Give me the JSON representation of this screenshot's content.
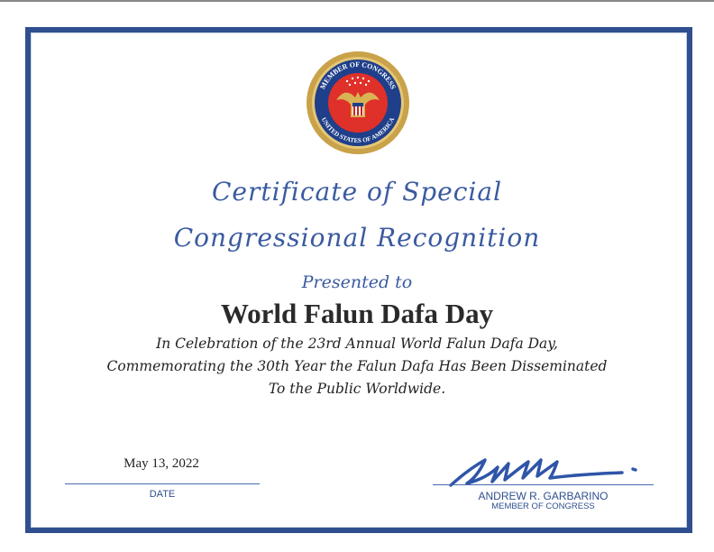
{
  "seal": {
    "top_text": "MEMBER OF CONGRESS",
    "bottom_text": "UNITED STATES OF AMERICA"
  },
  "title": {
    "line1": "Certificate of Special",
    "line2": "Congressional Recognition"
  },
  "presented_to": "Presented to",
  "recipient": "World Falun Dafa Day",
  "body": {
    "line1": "In Celebration of the 23rd Annual World Falun Dafa Day,",
    "line2": "Commemorating the 30th Year the Falun Dafa Has Been Disseminated",
    "line3": "To the Public Worldwide."
  },
  "date": {
    "value": "May 13, 2022",
    "label": "DATE"
  },
  "signer": {
    "name": "ANDREW R. GARBARINO",
    "title": "MEMBER OF CONGRESS"
  },
  "colors": {
    "border": "#2f4f8f",
    "script": "#3a5aa0",
    "seal_red": "#e0302a",
    "seal_gold": "#c9a24a",
    "seal_blue": "#1f3f8a"
  }
}
